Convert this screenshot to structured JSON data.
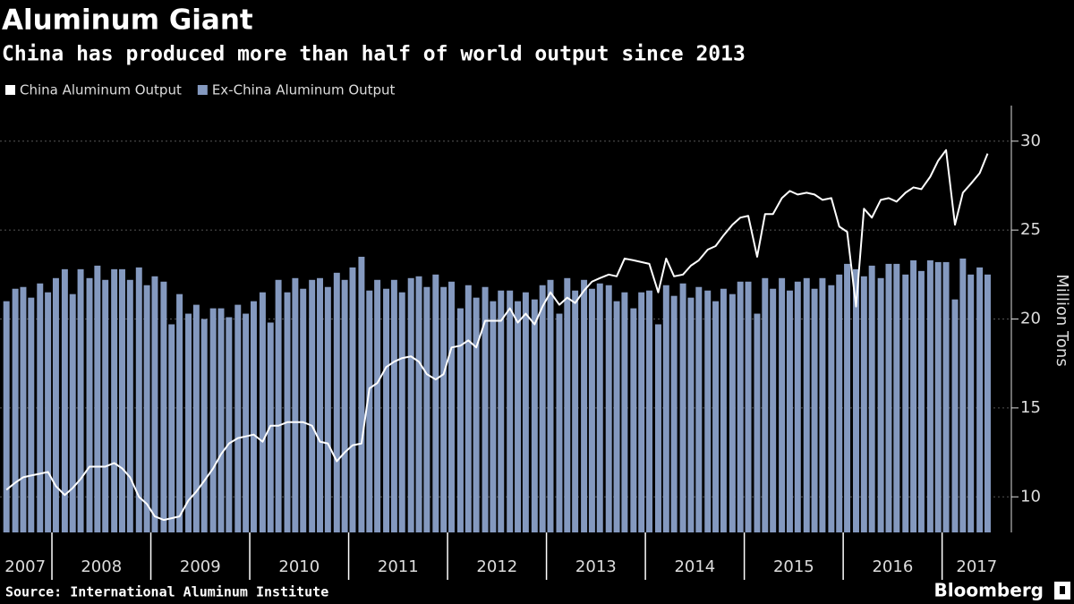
{
  "chart_data": {
    "type": "bar",
    "title": "Aluminum Giant",
    "subtitle": "China has produced more than half of world output since 2013",
    "y_label": "Million Tons",
    "source": "Source: International Aluminum Institute",
    "brand": "Bloomberg",
    "legend": "top-left",
    "grid": true,
    "xlim": [
      2007.475,
      2017.7
    ],
    "ylim": [
      8,
      32
    ],
    "yticks": [
      10,
      15,
      20,
      25,
      30
    ],
    "xticks": [
      2008,
      2009,
      2010,
      2011,
      2012,
      2013,
      2014,
      2015,
      2016,
      2017
    ],
    "xlabels": [
      {
        "value": 2007.73,
        "label": "2007"
      },
      {
        "value": 2008.5,
        "label": "2008"
      },
      {
        "value": 2009.5,
        "label": "2009"
      },
      {
        "value": 2010.5,
        "label": "2010"
      },
      {
        "value": 2011.5,
        "label": "2011"
      },
      {
        "value": 2012.5,
        "label": "2012"
      },
      {
        "value": 2013.5,
        "label": "2013"
      },
      {
        "value": 2014.5,
        "label": "2014"
      },
      {
        "value": 2015.5,
        "label": "2015"
      },
      {
        "value": 2016.5,
        "label": "2016"
      },
      {
        "value": 2017.35,
        "label": "2017"
      }
    ],
    "x": [
      2007.54,
      2007.63,
      2007.71,
      2007.79,
      2007.88,
      2007.96,
      2008.04,
      2008.13,
      2008.21,
      2008.29,
      2008.38,
      2008.46,
      2008.54,
      2008.63,
      2008.71,
      2008.79,
      2008.88,
      2008.96,
      2009.04,
      2009.13,
      2009.21,
      2009.29,
      2009.38,
      2009.46,
      2009.54,
      2009.63,
      2009.71,
      2009.79,
      2009.88,
      2009.96,
      2010.04,
      2010.13,
      2010.21,
      2010.29,
      2010.38,
      2010.46,
      2010.54,
      2010.63,
      2010.71,
      2010.79,
      2010.88,
      2010.96,
      2011.04,
      2011.13,
      2011.21,
      2011.29,
      2011.38,
      2011.46,
      2011.54,
      2011.63,
      2011.71,
      2011.79,
      2011.88,
      2011.96,
      2012.04,
      2012.13,
      2012.21,
      2012.29,
      2012.38,
      2012.46,
      2012.54,
      2012.63,
      2012.71,
      2012.79,
      2012.88,
      2012.96,
      2013.04,
      2013.13,
      2013.21,
      2013.29,
      2013.38,
      2013.46,
      2013.54,
      2013.63,
      2013.71,
      2013.79,
      2013.88,
      2013.96,
      2014.04,
      2014.13,
      2014.21,
      2014.29,
      2014.38,
      2014.46,
      2014.54,
      2014.63,
      2014.71,
      2014.79,
      2014.88,
      2014.96,
      2015.04,
      2015.13,
      2015.21,
      2015.29,
      2015.38,
      2015.46,
      2015.54,
      2015.63,
      2015.71,
      2015.79,
      2015.88,
      2015.96,
      2016.04,
      2016.13,
      2016.21,
      2016.29,
      2016.38,
      2016.46,
      2016.54,
      2016.63,
      2016.71,
      2016.79,
      2016.88,
      2016.96,
      2017.04,
      2017.13,
      2017.21,
      2017.29,
      2017.38,
      2017.46
    ],
    "series": [
      {
        "name": "China Aluminum Output",
        "type": "line",
        "color": "#ffffff",
        "values": [
          10.4,
          10.8,
          11.1,
          11.2,
          11.3,
          11.4,
          10.6,
          10.1,
          10.5,
          11.0,
          11.7,
          11.7,
          11.7,
          11.9,
          11.6,
          11.1,
          10.0,
          9.6,
          8.9,
          8.7,
          8.8,
          8.9,
          9.8,
          10.3,
          10.9,
          11.6,
          12.4,
          13.0,
          13.3,
          13.4,
          13.5,
          13.1,
          14.0,
          14.0,
          14.2,
          14.2,
          14.2,
          14.0,
          13.1,
          13.0,
          12.0,
          12.5,
          12.9,
          13.0,
          16.1,
          16.4,
          17.3,
          17.6,
          17.8,
          17.9,
          17.6,
          16.9,
          16.6,
          16.9,
          18.4,
          18.5,
          18.8,
          18.4,
          19.9,
          19.9,
          19.9,
          20.6,
          19.8,
          20.3,
          19.7,
          20.7,
          21.5,
          20.8,
          21.2,
          20.9,
          21.6,
          22.1,
          22.3,
          22.5,
          22.4,
          23.4,
          23.3,
          23.2,
          23.1,
          21.5,
          23.4,
          22.4,
          22.5,
          23.0,
          23.3,
          23.9,
          24.1,
          24.7,
          25.3,
          25.7,
          25.8,
          23.5,
          25.9,
          25.9,
          26.8,
          27.2,
          27.0,
          27.1,
          27.0,
          26.7,
          26.8,
          25.2,
          24.9,
          20.7,
          26.2,
          25.7,
          26.7,
          26.8,
          26.6,
          27.1,
          27.4,
          27.3,
          28.0,
          28.9,
          29.5,
          25.3,
          27.1,
          27.6,
          28.2,
          29.3
        ]
      },
      {
        "name": "Ex-China Aluminum Output",
        "type": "bar",
        "color": "#8499bf",
        "values": [
          21.0,
          21.7,
          21.8,
          21.2,
          22.0,
          21.5,
          22.3,
          22.8,
          21.4,
          22.8,
          22.3,
          23.0,
          22.2,
          22.8,
          22.8,
          22.2,
          22.9,
          21.9,
          22.4,
          22.1,
          19.7,
          21.4,
          20.3,
          20.8,
          20.0,
          20.6,
          20.6,
          20.1,
          20.8,
          20.3,
          21.0,
          21.5,
          19.8,
          22.2,
          21.5,
          22.3,
          21.7,
          22.2,
          22.3,
          21.8,
          22.6,
          22.2,
          22.9,
          23.5,
          21.6,
          22.2,
          21.7,
          22.2,
          21.5,
          22.3,
          22.4,
          21.8,
          22.5,
          21.8,
          22.1,
          20.6,
          21.9,
          21.2,
          21.8,
          21.0,
          21.6,
          21.6,
          21.0,
          21.5,
          21.1,
          21.9,
          22.2,
          20.3,
          22.3,
          21.6,
          22.2,
          21.7,
          22.0,
          21.9,
          21.0,
          21.5,
          20.6,
          21.5,
          21.6,
          19.7,
          21.9,
          21.3,
          22.0,
          21.2,
          21.8,
          21.6,
          21.0,
          21.7,
          21.4,
          22.1,
          22.1,
          20.3,
          22.3,
          21.7,
          22.3,
          21.6,
          22.1,
          22.3,
          21.7,
          22.3,
          21.9,
          22.5,
          23.1,
          22.8,
          22.4,
          23.0,
          22.3,
          23.1,
          23.1,
          22.5,
          23.3,
          22.7,
          23.3,
          23.2,
          23.2,
          21.1,
          23.4,
          22.5,
          22.9,
          22.5
        ]
      }
    ]
  }
}
